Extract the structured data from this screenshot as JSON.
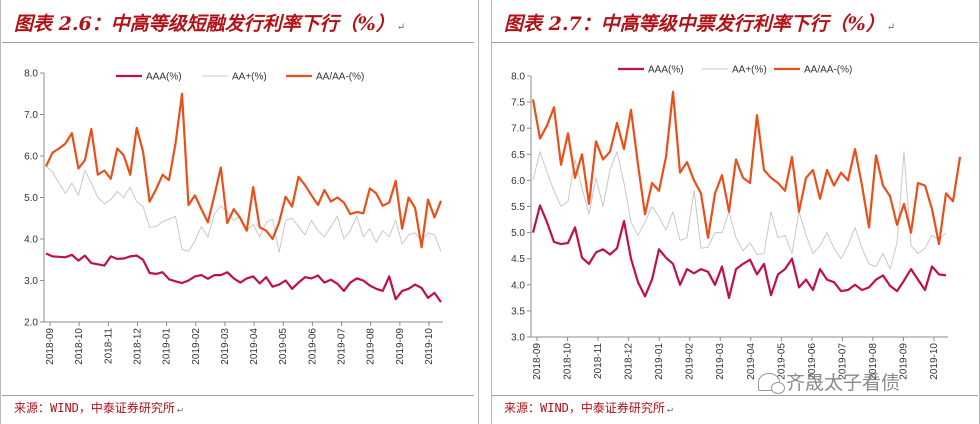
{
  "left_panel": {
    "title": "图表 2.6：中高等级短融发行利率下行（%）",
    "source": "来源：WIND，中泰证券研究所"
  },
  "right_panel": {
    "title": "图表 2.7：中高等级中票发行利率下行（%）",
    "source": "来源：WIND，中泰证券研究所"
  },
  "watermark": {
    "text": "齐晟太子看债",
    "icon": "wechat-icon"
  },
  "colors": {
    "title": "#b11218",
    "aaa": "#c0104a",
    "aa_plus": "#c8c8c8",
    "aa_aa_minus": "#e8501a"
  },
  "chart_data": [
    {
      "type": "line",
      "title": "",
      "xlabel": "",
      "ylabel": "",
      "ylim": [
        2.0,
        8.0
      ],
      "yticks": [
        "8.0",
        "7.0",
        "6.0",
        "5.0",
        "4.0",
        "3.0",
        "2.0"
      ],
      "xticks": [
        "2018-09",
        "2018-10",
        "2018-11",
        "2018-12",
        "2019-01",
        "2019-02",
        "2019-03",
        "2019-04",
        "2019-05",
        "2019-06",
        "2019-07",
        "2019-08",
        "2019-09",
        "2019-10"
      ],
      "legend": "top",
      "series": [
        {
          "name": "AAA(%)",
          "color": "#c0104a",
          "values": [
            3.65,
            3.58,
            3.57,
            3.56,
            3.62,
            3.48,
            3.6,
            3.42,
            3.39,
            3.36,
            3.58,
            3.52,
            3.53,
            3.58,
            3.6,
            3.5,
            3.18,
            3.16,
            3.2,
            3.03,
            2.98,
            2.94,
            3.0,
            3.1,
            3.13,
            3.04,
            3.13,
            3.13,
            3.2,
            3.05,
            2.95,
            3.05,
            3.1,
            2.93,
            3.08,
            2.85,
            2.9,
            3.0,
            2.8,
            2.95,
            3.08,
            3.05,
            3.12,
            2.95,
            3.02,
            2.92,
            2.75,
            2.95,
            3.05,
            3.0,
            2.88,
            2.8,
            2.75,
            3.1,
            2.55,
            2.75,
            2.8,
            2.9,
            2.82,
            2.58,
            2.7,
            2.48
          ]
        },
        {
          "name": "AA+(%)",
          "color": "#c8c8c8",
          "values": [
            5.75,
            5.62,
            5.35,
            5.1,
            5.35,
            5.05,
            5.65,
            5.35,
            5.0,
            4.85,
            4.95,
            5.15,
            5.0,
            5.25,
            4.9,
            4.78,
            4.28,
            4.3,
            4.42,
            4.48,
            4.55,
            3.75,
            3.7,
            3.95,
            4.3,
            4.05,
            4.6,
            4.8,
            4.65,
            4.45,
            4.55,
            4.2,
            4.35,
            4.05,
            4.4,
            4.48,
            3.68,
            4.45,
            4.5,
            4.3,
            4.1,
            4.45,
            4.2,
            4.05,
            4.3,
            4.55,
            4.0,
            4.2,
            4.55,
            4.05,
            4.25,
            3.92,
            4.2,
            4.05,
            4.45,
            3.88,
            4.1,
            4.15,
            3.95,
            4.15,
            4.1,
            3.7
          ]
        },
        {
          "name": "AA/AA-(%)",
          "color": "#e8501a",
          "values": [
            5.75,
            6.08,
            6.18,
            6.3,
            6.55,
            5.7,
            5.9,
            6.65,
            5.55,
            5.65,
            5.45,
            6.18,
            6.02,
            5.55,
            6.68,
            6.1,
            4.9,
            5.2,
            5.55,
            5.42,
            6.3,
            7.5,
            4.82,
            5.05,
            4.72,
            4.4,
            5.05,
            5.72,
            4.38,
            4.72,
            4.5,
            4.2,
            5.25,
            4.28,
            4.2,
            4.0,
            4.4,
            5.02,
            4.78,
            5.5,
            5.3,
            5.05,
            4.82,
            5.18,
            4.9,
            5.0,
            4.88,
            4.6,
            4.65,
            4.62,
            5.22,
            5.1,
            4.8,
            4.88,
            5.4,
            4.25,
            5.0,
            4.75,
            3.8,
            4.95,
            4.52,
            4.92
          ]
        }
      ]
    },
    {
      "type": "line",
      "title": "",
      "xlabel": "",
      "ylabel": "",
      "ylim": [
        3.0,
        8.0
      ],
      "yticks": [
        "8.0",
        "7.5",
        "7.0",
        "6.5",
        "6.0",
        "5.5",
        "5.0",
        "4.5",
        "4.0",
        "3.5",
        "3.0"
      ],
      "xticks": [
        "2018-09",
        "2018-10",
        "2018-11",
        "2018-12",
        "2019-01",
        "2019-02",
        "2019-03",
        "2019-04",
        "2019-05",
        "2019-06",
        "2019-07",
        "2019-08",
        "2019-09",
        "2019-10"
      ],
      "legend": "top",
      "series": [
        {
          "name": "AAA(%)",
          "color": "#c0104a",
          "values": [
            5.0,
            5.52,
            5.2,
            4.82,
            4.78,
            4.8,
            5.1,
            4.52,
            4.4,
            4.62,
            4.68,
            4.58,
            4.7,
            5.22,
            4.5,
            4.05,
            3.78,
            4.1,
            4.68,
            4.52,
            4.4,
            4.0,
            4.3,
            4.22,
            4.3,
            4.25,
            4.0,
            4.35,
            3.75,
            4.3,
            4.4,
            4.48,
            4.2,
            4.4,
            3.8,
            4.2,
            4.3,
            4.5,
            3.95,
            4.1,
            3.9,
            4.3,
            4.1,
            4.05,
            3.88,
            3.9,
            4.0,
            3.9,
            3.95,
            4.1,
            4.18,
            3.98,
            3.88,
            4.08,
            4.3,
            4.1,
            3.9,
            4.35,
            4.2,
            4.18
          ]
        },
        {
          "name": "AA+(%)",
          "color": "#c8c8c8",
          "values": [
            6.0,
            6.55,
            6.15,
            5.8,
            5.5,
            5.6,
            6.4,
            5.85,
            5.35,
            6.05,
            5.5,
            6.2,
            6.55,
            5.95,
            5.2,
            4.95,
            5.2,
            5.5,
            5.3,
            5.05,
            5.4,
            4.85,
            4.9,
            5.8,
            4.7,
            4.72,
            5.0,
            5.0,
            5.4,
            4.9,
            4.65,
            4.8,
            4.58,
            4.6,
            5.4,
            4.9,
            4.95,
            4.6,
            5.4,
            4.95,
            4.6,
            4.75,
            5.0,
            4.7,
            4.5,
            4.75,
            5.1,
            4.7,
            4.4,
            4.35,
            4.6,
            4.3,
            4.8,
            6.55,
            4.75,
            4.6,
            4.7,
            4.95,
            4.85,
            5.0
          ]
        },
        {
          "name": "AA/AA-(%)",
          "color": "#e8501a",
          "values": [
            7.55,
            6.8,
            7.05,
            7.4,
            6.3,
            6.9,
            6.05,
            6.5,
            5.55,
            6.75,
            6.4,
            6.55,
            7.1,
            6.6,
            7.35,
            6.3,
            5.35,
            5.95,
            5.8,
            6.45,
            7.7,
            6.15,
            6.35,
            6.0,
            5.75,
            4.9,
            5.75,
            6.1,
            5.4,
            6.4,
            6.05,
            5.95,
            7.25,
            6.2,
            6.05,
            5.95,
            5.8,
            6.45,
            5.4,
            6.05,
            6.2,
            5.65,
            6.2,
            5.9,
            6.15,
            6.0,
            6.6,
            5.9,
            5.1,
            6.48,
            5.9,
            5.7,
            5.15,
            5.55,
            5.0,
            5.95,
            5.9,
            5.45,
            4.78,
            5.75,
            5.6,
            6.45
          ]
        }
      ]
    }
  ]
}
